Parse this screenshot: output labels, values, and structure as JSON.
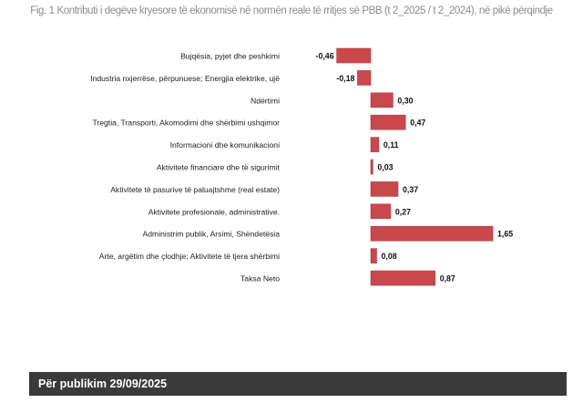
{
  "title": "Fig. 1 Kontributi i degëve kryesore të ekonomisë në normën reale të rritjes së PBB (t 2_2025 / t 2_2024), në pikë përqindje",
  "footer": "Për publikim 29/09/2025",
  "colors": {
    "bar": "#c9484c",
    "bar_stroke": "#b33a3e",
    "label": "#222222",
    "footer_bg": "#3a3a3a"
  },
  "chart_data": {
    "type": "bar",
    "orientation": "horizontal",
    "title": "Fig. 1 Kontributi i degëve kryesore të ekonomisë në normën reale të rritjes së PBB (t 2_2025 / t 2_2024), në pikë përqindje",
    "categories": [
      "Bujqësia, pyjet dhe peshkimi",
      "Industria nxjerrëse, përpunuese; Energjia elektrike, ujë",
      "Ndërtimi",
      "Tregtia, Transporti, Akomodimi dhe shërbimi ushqimor",
      "Informacioni dhe komunikacioni",
      "Aktivitete financiare dhe të sigurimit",
      "Aktivitete të pasurive të paluajtshme (real estate)",
      "Aktivitete profesionale, administrative.",
      "Administrim publik, Arsimi, Shëndetësia",
      "Arte, argëtim dhe çlodhje; Aktivitete të tjera shërbimi",
      "Taksa Neto"
    ],
    "values": [
      -0.46,
      -0.18,
      0.3,
      0.47,
      0.11,
      0.03,
      0.37,
      0.27,
      1.65,
      0.08,
      0.87
    ],
    "data_labels": [
      "-0,46",
      "-0,18",
      "0,30",
      "0,47",
      "0,11",
      "0,03",
      "0,37",
      "0,27",
      "1,65",
      "0,08",
      "0,87"
    ],
    "xlim": [
      -0.46,
      1.65
    ],
    "grid": false,
    "legend": "none"
  }
}
